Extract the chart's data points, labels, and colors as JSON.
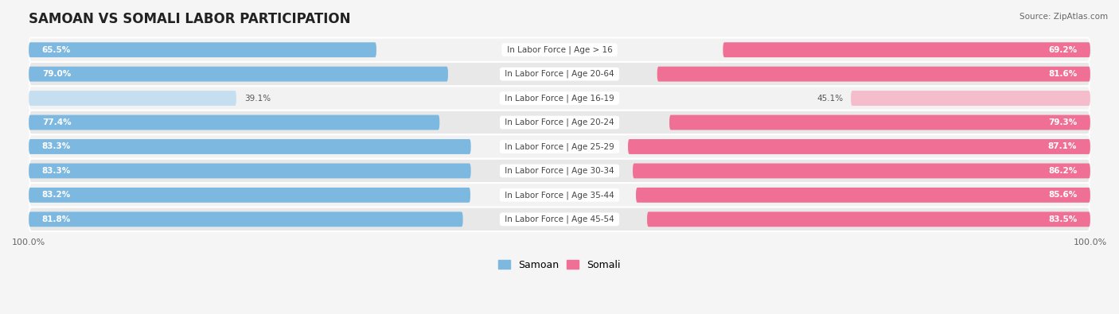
{
  "title": "SAMOAN VS SOMALI LABOR PARTICIPATION",
  "source": "Source: ZipAtlas.com",
  "categories": [
    "In Labor Force | Age > 16",
    "In Labor Force | Age 20-64",
    "In Labor Force | Age 16-19",
    "In Labor Force | Age 20-24",
    "In Labor Force | Age 25-29",
    "In Labor Force | Age 30-34",
    "In Labor Force | Age 35-44",
    "In Labor Force | Age 45-54"
  ],
  "samoan": [
    65.5,
    79.0,
    39.1,
    77.4,
    83.3,
    83.3,
    83.2,
    81.8
  ],
  "somali": [
    69.2,
    81.6,
    45.1,
    79.3,
    87.1,
    86.2,
    85.6,
    83.5
  ],
  "samoan_color": "#7db8e0",
  "samoan_light_color": "#c5dff0",
  "somali_color": "#f07095",
  "somali_light_color": "#f5bccb",
  "row_bg_even": "#f2f2f2",
  "row_bg_odd": "#e8e8e8",
  "chart_bg": "#ffffff",
  "outer_bg": "#f5f5f5",
  "max_val": 100.0,
  "bar_height": 0.62,
  "title_fontsize": 12,
  "label_fontsize": 7.5,
  "value_fontsize": 7.5,
  "legend_fontsize": 9,
  "background_color": "#f5f5f5"
}
